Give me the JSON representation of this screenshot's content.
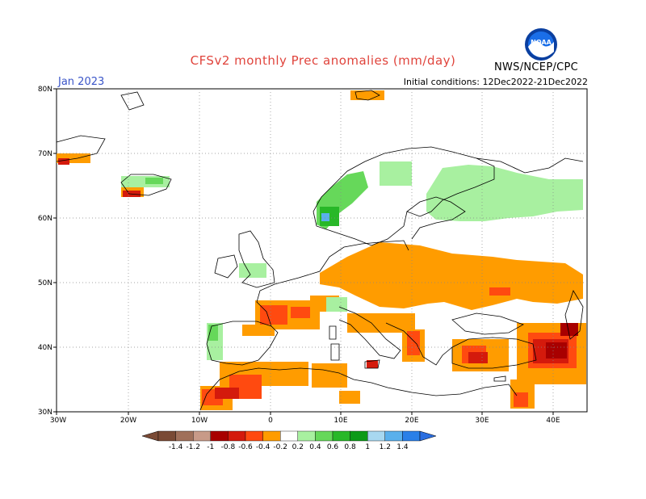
{
  "header": {
    "title": "CFSv2 monthly Prec anomalies (mm/day)",
    "month": "Jan 2023",
    "initial_conditions": "Initial conditions: 12Dec2022-21Dec2022",
    "agency": "NWS/NCEP/CPC"
  },
  "axes": {
    "lat_labels": [
      "80N",
      "70N",
      "60N",
      "50N",
      "40N",
      "30N"
    ],
    "lon_labels": [
      "30W",
      "20W",
      "10W",
      "0",
      "10E",
      "20E",
      "30E",
      "40E"
    ]
  },
  "colorbar": {
    "labels": [
      "-1.4",
      "-1.2",
      "-1",
      "-0.8",
      "-0.6",
      "-0.4",
      "-0.2",
      "0.2",
      "0.4",
      "0.6",
      "0.8",
      "1",
      "1.2",
      "1.4"
    ],
    "colors": [
      "#7a4a35",
      "#a0705a",
      "#c89a88",
      "#a80000",
      "#d41a0c",
      "#ff4a10",
      "#ff9c00",
      "#ffffff",
      "#a8f0a0",
      "#66d85a",
      "#28b828",
      "#0c9a18",
      "#a8d8f0",
      "#5ab0ec",
      "#2a80e8"
    ]
  },
  "colors": {
    "title": "#e0443c",
    "month": "#3a55c8",
    "dry_strong": "#d41a0c",
    "dry": "#ff9c00",
    "wet": "#a8f0a0",
    "wet_strong": "#66d85a"
  },
  "icons": {
    "logo": "noaa-logo-icon"
  }
}
